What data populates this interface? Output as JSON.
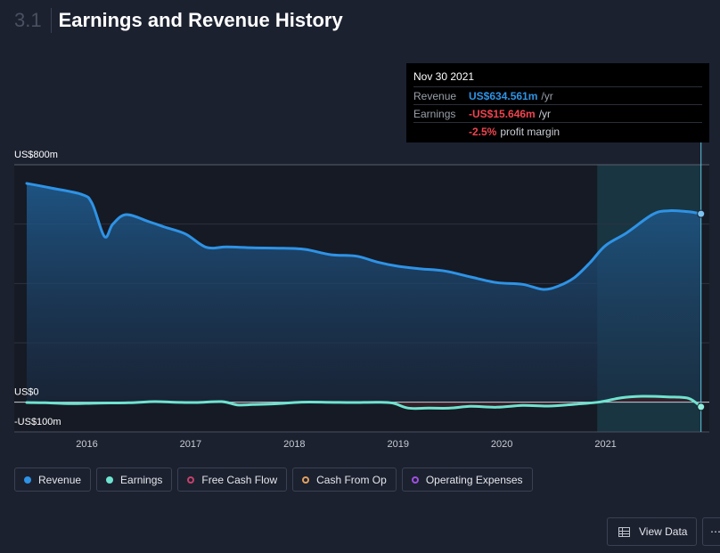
{
  "header": {
    "section_number": "3.1",
    "title": "Earnings and Revenue History"
  },
  "tooltip": {
    "date": "Nov 30 2021",
    "revenue_label": "Revenue",
    "revenue_value": "US$634.561m",
    "revenue_unit": "/yr",
    "earnings_label": "Earnings",
    "earnings_value": "-US$15.646m",
    "earnings_unit": "/yr",
    "margin_value": "-2.5%",
    "margin_label": "profit margin"
  },
  "legend": [
    {
      "label": "Revenue",
      "color": "#2e93e6",
      "filled": true
    },
    {
      "label": "Earnings",
      "color": "#6fe3cf",
      "filled": true
    },
    {
      "label": "Free Cash Flow",
      "color": "#c7416b",
      "filled": false
    },
    {
      "label": "Cash From Op",
      "color": "#e0a060",
      "filled": false
    },
    {
      "label": "Operating Expenses",
      "color": "#a050e0",
      "filled": false
    }
  ],
  "buttons": {
    "view_data": "View Data",
    "more": "⋯"
  },
  "chart_data": {
    "type": "area",
    "title": "Earnings and Revenue History",
    "ylim": [
      -100,
      800
    ],
    "y_ticks": [
      {
        "value": 800,
        "label": "US$800m"
      },
      {
        "value": 0,
        "label": "US$0"
      },
      {
        "value": -100,
        "label": "-US$100m"
      }
    ],
    "x_ticks": [
      {
        "value": 2016,
        "label": "2016"
      },
      {
        "value": 2017,
        "label": "2017"
      },
      {
        "value": 2018,
        "label": "2018"
      },
      {
        "value": 2019,
        "label": "2019"
      },
      {
        "value": 2020,
        "label": "2020"
      },
      {
        "value": 2021,
        "label": "2021"
      }
    ],
    "xlim": [
      2015.3,
      2022.0
    ],
    "highlight_start": 2020.92,
    "cursor_x": 2021.92,
    "series": [
      {
        "name": "Revenue",
        "color": "#2e93e6",
        "x": [
          2015.42,
          2015.65,
          2015.95,
          2016.05,
          2016.17,
          2016.25,
          2016.38,
          2016.6,
          2016.75,
          2016.95,
          2017.15,
          2017.35,
          2017.6,
          2017.85,
          2018.1,
          2018.35,
          2018.6,
          2018.8,
          2019.0,
          2019.2,
          2019.45,
          2019.7,
          2019.95,
          2020.2,
          2020.4,
          2020.55,
          2020.7,
          2020.85,
          2021.0,
          2021.2,
          2021.45,
          2021.6,
          2021.8,
          2021.92
        ],
        "values": [
          737,
          722,
          700,
          670,
          558,
          600,
          632,
          608,
          590,
          567,
          522,
          523,
          520,
          519,
          515,
          497,
          492,
          472,
          458,
          450,
          442,
          422,
          403,
          397,
          380,
          392,
          420,
          470,
          528,
          570,
          632,
          645,
          642,
          634.561
        ]
      },
      {
        "name": "Earnings",
        "color": "#6fe3cf",
        "x": [
          2015.42,
          2015.6,
          2015.85,
          2016.1,
          2016.4,
          2016.65,
          2016.85,
          2017.05,
          2017.3,
          2017.45,
          2017.6,
          2017.85,
          2018.05,
          2018.3,
          2018.55,
          2018.8,
          2018.95,
          2019.1,
          2019.3,
          2019.5,
          2019.7,
          2019.95,
          2020.2,
          2020.45,
          2020.7,
          2020.95,
          2021.15,
          2021.35,
          2021.6,
          2021.8,
          2021.92
        ],
        "values": [
          -1,
          -2,
          -5,
          -3,
          -2,
          2,
          0,
          -1,
          2,
          -9,
          -8,
          -5,
          0,
          0,
          -1,
          0,
          -3,
          -20,
          -20,
          -20,
          -14,
          -17,
          -11,
          -13,
          -7,
          1,
          15,
          20,
          18,
          13,
          -15.646
        ]
      }
    ]
  }
}
